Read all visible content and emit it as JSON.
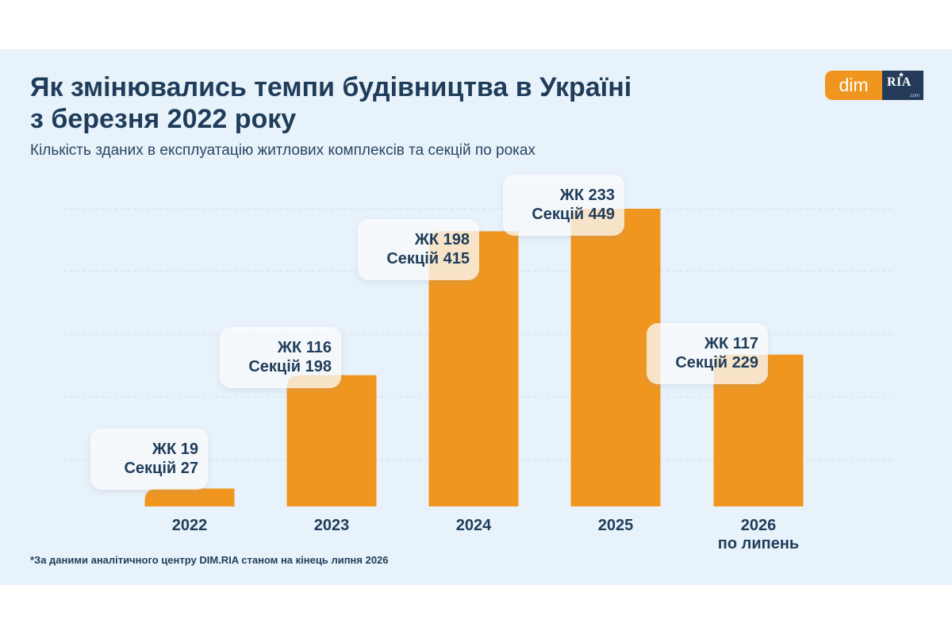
{
  "header": {
    "title_line1": "Як змінювались темпи будівництва в Україні",
    "title_line2": "з березня 2022 року",
    "subtitle": "Кількість зданих в експлуатацію житлових комплексів та секцій по роках"
  },
  "logo": {
    "dim": "dim",
    "ria": "RIA",
    "com": ".com"
  },
  "footnote": "*За даними аналітичного центру DIM.RIA станом на кінець липня 2026",
  "colors": {
    "bar": "#f0961e",
    "text": "#1f3d5a",
    "background": "#e8f2fb",
    "grid": "#d4dee8"
  },
  "chart_data": {
    "type": "bar",
    "categories": [
      "2022",
      "2023",
      "2024",
      "2025",
      "2026\nпо липень"
    ],
    "series": [
      {
        "values": [
          27,
          198,
          415,
          449,
          229
        ]
      }
    ],
    "data_labels": [
      [
        "ЖК 19",
        "Секцій 27"
      ],
      [
        "ЖК 116",
        "Секцій 198"
      ],
      [
        "ЖК 198",
        "Секцій 415"
      ],
      [
        "ЖК 233",
        "Секцій 449"
      ],
      [
        "ЖК 117",
        "Секцій 229"
      ]
    ],
    "complexes": [
      19,
      116,
      198,
      233,
      117
    ],
    "ylim": [
      0,
      520
    ],
    "grid": true,
    "xlabel": "",
    "ylabel": ""
  }
}
